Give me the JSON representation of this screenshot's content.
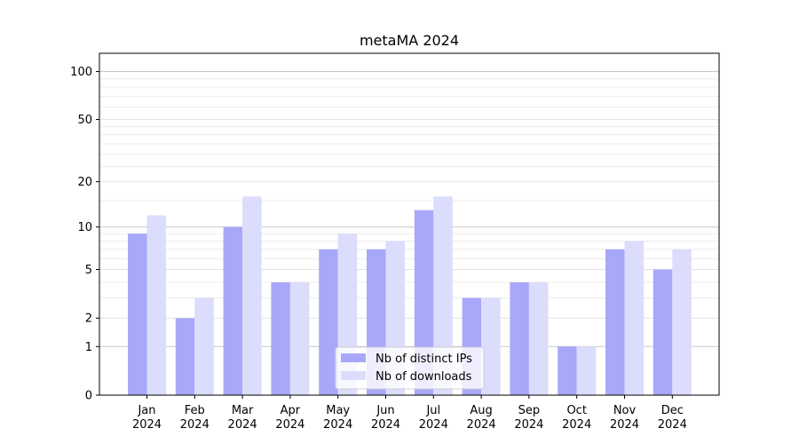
{
  "chart_data": {
    "type": "bar",
    "title": "metaMA 2024",
    "xlabel": "",
    "ylabel": "",
    "yscale": "symlog",
    "ylim": [
      0,
      130
    ],
    "yticks": [
      0,
      1,
      2,
      5,
      10,
      20,
      50,
      100
    ],
    "grid": "horizontal",
    "legend_position": "lower-center",
    "categories": [
      "Jan\n2024",
      "Feb\n2024",
      "Mar\n2024",
      "Apr\n2024",
      "May\n2024",
      "Jun\n2024",
      "Jul\n2024",
      "Aug\n2024",
      "Sep\n2024",
      "Oct\n2024",
      "Nov\n2024",
      "Dec\n2024"
    ],
    "series": [
      {
        "name": "Nb of distinct IPs",
        "color": "#a8a8fa",
        "values": [
          9,
          2,
          10,
          4,
          7,
          7,
          13,
          3,
          4,
          1,
          7,
          5
        ]
      },
      {
        "name": "Nb of downloads",
        "color": "#dcdcfc",
        "values": [
          12,
          3,
          16,
          4,
          9,
          8,
          16,
          3,
          4,
          1,
          8,
          7
        ]
      }
    ]
  }
}
